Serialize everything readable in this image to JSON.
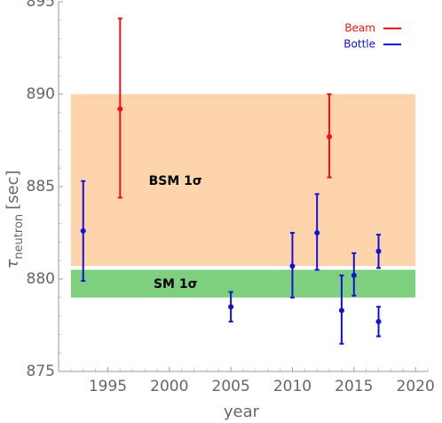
{
  "chart_data": {
    "type": "scatter",
    "xlabel": "year",
    "ylabel": "τ",
    "ylabel_sub": "neutron",
    "ylabel_unit": "[sec]",
    "xlim": [
      1991,
      2021
    ],
    "ylim": [
      875,
      895
    ],
    "x_ticks": [
      1995,
      2000,
      2005,
      2010,
      2015,
      2020
    ],
    "y_ticks": [
      875,
      880,
      885,
      890,
      895
    ],
    "grid": false,
    "legend_placement": "top-right",
    "bands": [
      {
        "label": "BSM 1σ",
        "ymin": 880.7,
        "ymax": 890.0,
        "color": "#fdd4ab",
        "label_x": 2000.5,
        "label_y": 885.3
      },
      {
        "label": "SM 1σ",
        "ymin": 879.0,
        "ymax": 880.5,
        "color": "#7ed07e",
        "label_x": 2000.5,
        "label_y": 879.7
      }
    ],
    "series": [
      {
        "name": "Beam",
        "color": "#ee1111",
        "points": [
          {
            "x": 1996,
            "y": 889.2,
            "ylow": 884.4,
            "yhigh": 894.1
          },
          {
            "x": 2013,
            "y": 887.7,
            "ylow": 885.5,
            "yhigh": 890.0
          }
        ]
      },
      {
        "name": "Bottle",
        "color": "#1111dd",
        "points": [
          {
            "x": 1993,
            "y": 882.6,
            "ylow": 879.9,
            "yhigh": 885.3
          },
          {
            "x": 2005,
            "y": 878.5,
            "ylow": 877.7,
            "yhigh": 879.3
          },
          {
            "x": 2010,
            "y": 880.7,
            "ylow": 879.0,
            "yhigh": 882.5
          },
          {
            "x": 2012,
            "y": 882.5,
            "ylow": 880.5,
            "yhigh": 884.6
          },
          {
            "x": 2014,
            "y": 878.3,
            "ylow": 876.5,
            "yhigh": 880.2
          },
          {
            "x": 2015,
            "y": 880.2,
            "ylow": 879.1,
            "yhigh": 881.4
          },
          {
            "x": 2017,
            "y": 877.7,
            "ylow": 876.9,
            "yhigh": 878.5
          },
          {
            "x": 2017,
            "y": 881.5,
            "ylow": 880.6,
            "yhigh": 882.4
          }
        ]
      }
    ]
  }
}
